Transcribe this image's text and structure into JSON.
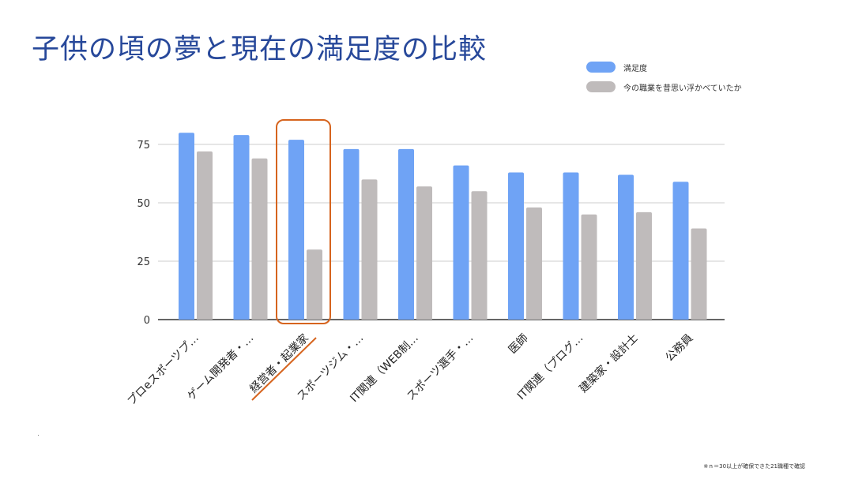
{
  "slide": {
    "title": "子供の頃の夢と現在の満足度の比較",
    "footnote": "※ｎ＝30以上が確保できた21職種で確認"
  },
  "colors": {
    "title": "#27489a",
    "satisfaction": "#6fa3f5",
    "recall": "#bfbbbb",
    "highlight": "#d6641e",
    "grid": "#cccccc",
    "axis": "#333333"
  },
  "chart_data": {
    "type": "bar",
    "title": "",
    "xlabel": "",
    "ylabel": "",
    "ylim": [
      0,
      90
    ],
    "yticks": [
      0,
      25,
      50,
      75
    ],
    "grid": true,
    "legend_position": "top-right",
    "categories": [
      "プロeスポーツプ…",
      "ゲーム開発者・…",
      "経営者・起業家",
      "スポーツジム・…",
      "IT関連（WEB制…",
      "スポーツ選手・…",
      "医師",
      "IT関連（プログ…",
      "建築家・設計士",
      "公務員"
    ],
    "series": [
      {
        "name": "満足度",
        "values": [
          80,
          79,
          77,
          73,
          73,
          66,
          63,
          63,
          62,
          59
        ]
      },
      {
        "name": "今の職業を昔思い浮かべていたか",
        "values": [
          72,
          69,
          30,
          60,
          57,
          55,
          48,
          45,
          46,
          39
        ]
      }
    ],
    "highlight_category": "経営者・起業家"
  }
}
